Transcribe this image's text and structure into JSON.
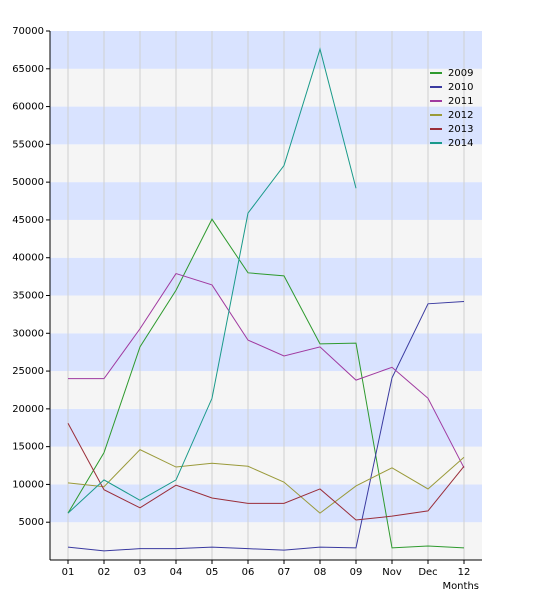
{
  "chart_data": {
    "type": "line",
    "x_label": "Months",
    "categories": [
      "01",
      "02",
      "03",
      "04",
      "05",
      "06",
      "07",
      "08",
      "09",
      "Nov",
      "Dec",
      "12"
    ],
    "ylim": [
      0,
      70000
    ],
    "yticks": [
      5000,
      10000,
      15000,
      20000,
      25000,
      30000,
      35000,
      40000,
      45000,
      50000,
      55000,
      60000,
      65000,
      70000
    ],
    "grid": true,
    "legend": "top-right",
    "band_colors": [
      "#f5f5f5",
      "#d9e3ff"
    ],
    "series": [
      {
        "name": "2009",
        "color": "#2e9a2e",
        "values": [
          6200,
          14200,
          28200,
          35700,
          45100,
          38000,
          37600,
          28600,
          28700,
          1600,
          1850,
          1600
        ]
      },
      {
        "name": "2010",
        "color": "#3a3aa0",
        "values": [
          1700,
          1200,
          1500,
          1500,
          1700,
          1500,
          1300,
          1700,
          1600,
          24100,
          33900,
          34200
        ]
      },
      {
        "name": "2011",
        "color": "#a03aa0",
        "values": [
          24000,
          24000,
          30600,
          37900,
          36400,
          29100,
          27000,
          28200,
          23800,
          25500,
          21400,
          12200
        ]
      },
      {
        "name": "2012",
        "color": "#9a9a3a",
        "values": [
          10200,
          9700,
          14600,
          12300,
          12800,
          12400,
          10300,
          6200,
          9800,
          12200,
          9400,
          13600
        ]
      },
      {
        "name": "2013",
        "color": "#9a2e3a",
        "values": [
          18100,
          9300,
          6900,
          9900,
          8200,
          7500,
          7500,
          9400,
          5300,
          5800,
          6500,
          12400
        ]
      },
      {
        "name": "2014",
        "color": "#1a9a8a",
        "values": [
          6200,
          10600,
          7900,
          10600,
          21400,
          45900,
          52200,
          67600,
          49200,
          null,
          null,
          null
        ]
      }
    ]
  }
}
